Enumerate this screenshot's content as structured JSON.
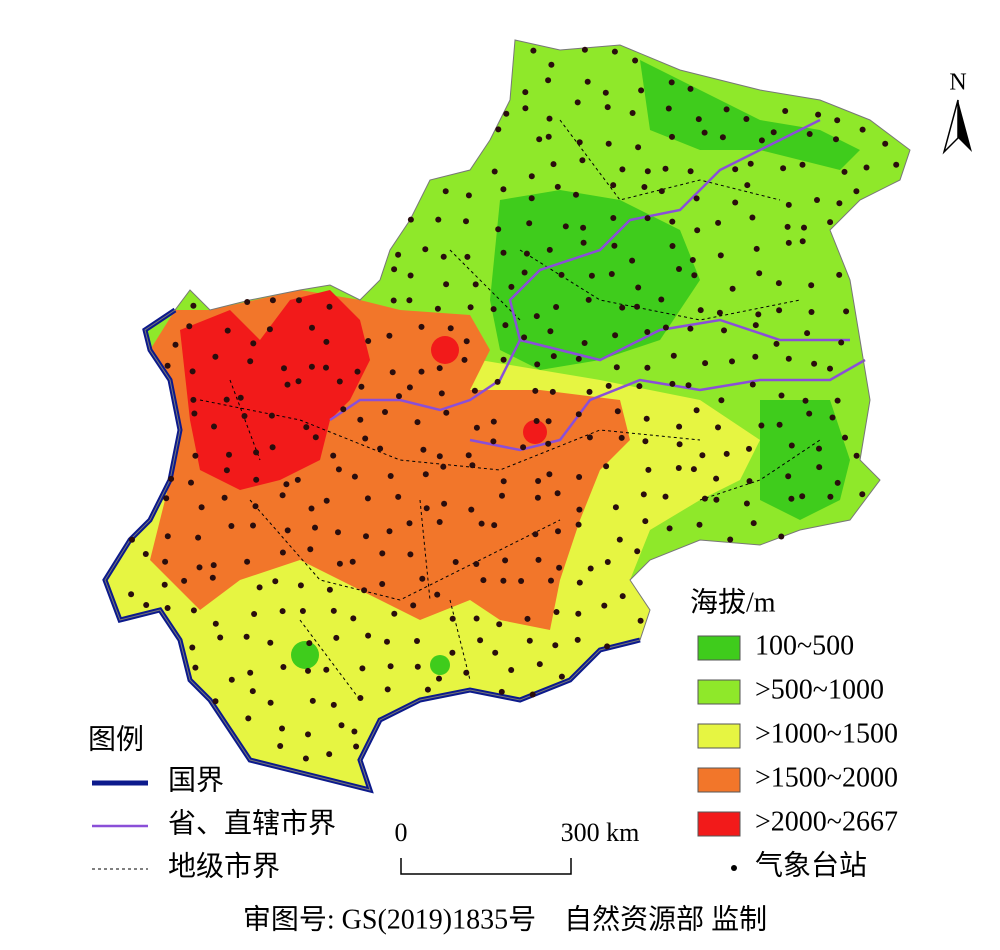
{
  "north": "N",
  "legend_elevation": {
    "title": "海拔/m",
    "items": [
      {
        "label": "100~500",
        "color": "#3fcc1c"
      },
      {
        "label": ">500~1000",
        "color": "#8fe82a"
      },
      {
        "label": ">1000~1500",
        "color": "#e6f542"
      },
      {
        "label": ">1500~2000",
        "color": "#f2762a"
      },
      {
        "label": ">2000~2667",
        "color": "#f21a1a"
      }
    ],
    "station": "气象台站"
  },
  "legend_boundaries": {
    "title": "图例",
    "items": [
      "国界",
      "省、直辖市界",
      "地级市界"
    ]
  },
  "scale_bar": {
    "start": "0",
    "end": "300 km"
  },
  "footer": "审图号: GS(2019)1835号　自然资源部 监制"
}
